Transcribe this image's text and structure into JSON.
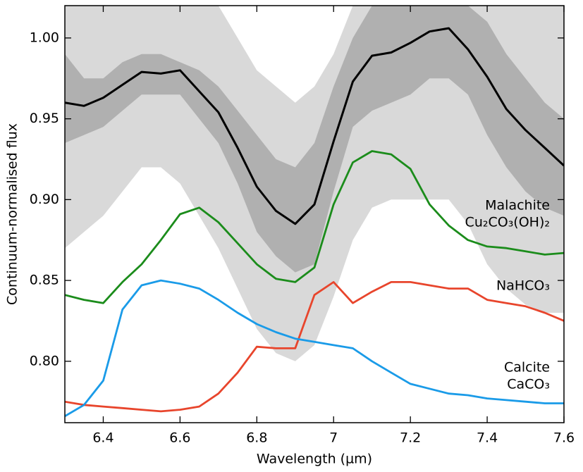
{
  "chart_data": {
    "type": "line",
    "x_label": "Wavelength (µm)",
    "y_label": "Continuum-normalised flux",
    "xlim": [
      6.3,
      7.6
    ],
    "ylim": [
      0.762,
      1.02
    ],
    "xticks": [
      6.4,
      6.6,
      6.8,
      7.0,
      7.2,
      7.4,
      7.6
    ],
    "yticks": [
      {
        "value": 0.8,
        "label": "0.80"
      },
      {
        "value": 0.85,
        "label": "0.85"
      },
      {
        "value": 0.9,
        "label": "0.90"
      },
      {
        "value": 0.95,
        "label": "0.95"
      },
      {
        "value": 1.0,
        "label": "1.00"
      }
    ],
    "x": [
      6.3,
      6.35,
      6.4,
      6.45,
      6.5,
      6.55,
      6.6,
      6.65,
      6.7,
      6.75,
      6.8,
      6.85,
      6.9,
      6.95,
      7.0,
      7.05,
      7.1,
      7.15,
      7.2,
      7.25,
      7.3,
      7.35,
      7.4,
      7.45,
      7.5,
      7.55,
      7.6
    ],
    "bands": [
      {
        "color": "#d9d9d9",
        "lower": [
          0.87,
          0.88,
          0.89,
          0.905,
          0.92,
          0.92,
          0.91,
          0.89,
          0.87,
          0.845,
          0.82,
          0.805,
          0.8,
          0.81,
          0.84,
          0.875,
          0.895,
          0.9,
          0.9,
          0.9,
          0.9,
          0.885,
          0.86,
          0.845,
          0.835,
          0.83,
          0.83
        ],
        "upper": [
          1.02,
          1.02,
          1.02,
          1.02,
          1.02,
          1.02,
          1.02,
          1.02,
          1.02,
          1.0,
          0.98,
          0.97,
          0.96,
          0.97,
          0.99,
          1.02,
          1.02,
          1.02,
          1.02,
          1.02,
          1.02,
          1.02,
          1.02,
          1.02,
          1.02,
          1.02,
          1.02
        ]
      },
      {
        "color": "#b0b0b0",
        "lower": [
          0.935,
          0.94,
          0.945,
          0.955,
          0.965,
          0.965,
          0.965,
          0.95,
          0.935,
          0.91,
          0.88,
          0.865,
          0.855,
          0.86,
          0.905,
          0.945,
          0.955,
          0.96,
          0.965,
          0.975,
          0.975,
          0.965,
          0.94,
          0.92,
          0.905,
          0.895,
          0.89
        ],
        "upper": [
          0.99,
          0.975,
          0.975,
          0.985,
          0.99,
          0.99,
          0.985,
          0.98,
          0.97,
          0.955,
          0.94,
          0.925,
          0.92,
          0.935,
          0.97,
          1.0,
          1.02,
          1.02,
          1.02,
          1.02,
          1.02,
          1.02,
          1.01,
          0.99,
          0.975,
          0.96,
          0.95
        ]
      }
    ],
    "series": [
      {
        "color": "#000000",
        "values": [
          0.96,
          0.958,
          0.963,
          0.971,
          0.979,
          0.978,
          0.98,
          0.967,
          0.954,
          0.932,
          0.908,
          0.893,
          0.885,
          0.897,
          0.936,
          0.973,
          0.989,
          0.991,
          0.997,
          1.004,
          1.006,
          0.993,
          0.976,
          0.956,
          0.943,
          0.932,
          0.921
        ]
      },
      {
        "color": "#1b8c1b",
        "values": [
          0.841,
          0.838,
          0.836,
          0.849,
          0.86,
          0.875,
          0.891,
          0.895,
          0.886,
          0.873,
          0.86,
          0.851,
          0.849,
          0.858,
          0.897,
          0.923,
          0.93,
          0.928,
          0.919,
          0.897,
          0.884,
          0.875,
          0.871,
          0.87,
          0.868,
          0.866,
          0.867
        ]
      },
      {
        "color": "#e8452c",
        "values": [
          0.775,
          0.773,
          0.772,
          0.771,
          0.77,
          0.769,
          0.77,
          0.772,
          0.78,
          0.793,
          0.809,
          0.808,
          0.808,
          0.841,
          0.849,
          0.836,
          0.843,
          0.849,
          0.849,
          0.847,
          0.845,
          0.845,
          0.838,
          0.836,
          0.834,
          0.83,
          0.825
        ]
      },
      {
        "color": "#1a9be8",
        "values": [
          0.766,
          0.773,
          0.788,
          0.832,
          0.847,
          0.85,
          0.848,
          0.845,
          0.838,
          0.83,
          0.823,
          0.818,
          0.814,
          0.812,
          0.81,
          0.808,
          0.8,
          0.793,
          0.786,
          0.783,
          0.78,
          0.779,
          0.777,
          0.776,
          0.775,
          0.774,
          0.774
        ]
      }
    ],
    "annotations": [
      "Malachite",
      "Cu₂CO₃(OH)₂",
      "NaHCO₃",
      "Calcite",
      "CaCO₃"
    ]
  }
}
